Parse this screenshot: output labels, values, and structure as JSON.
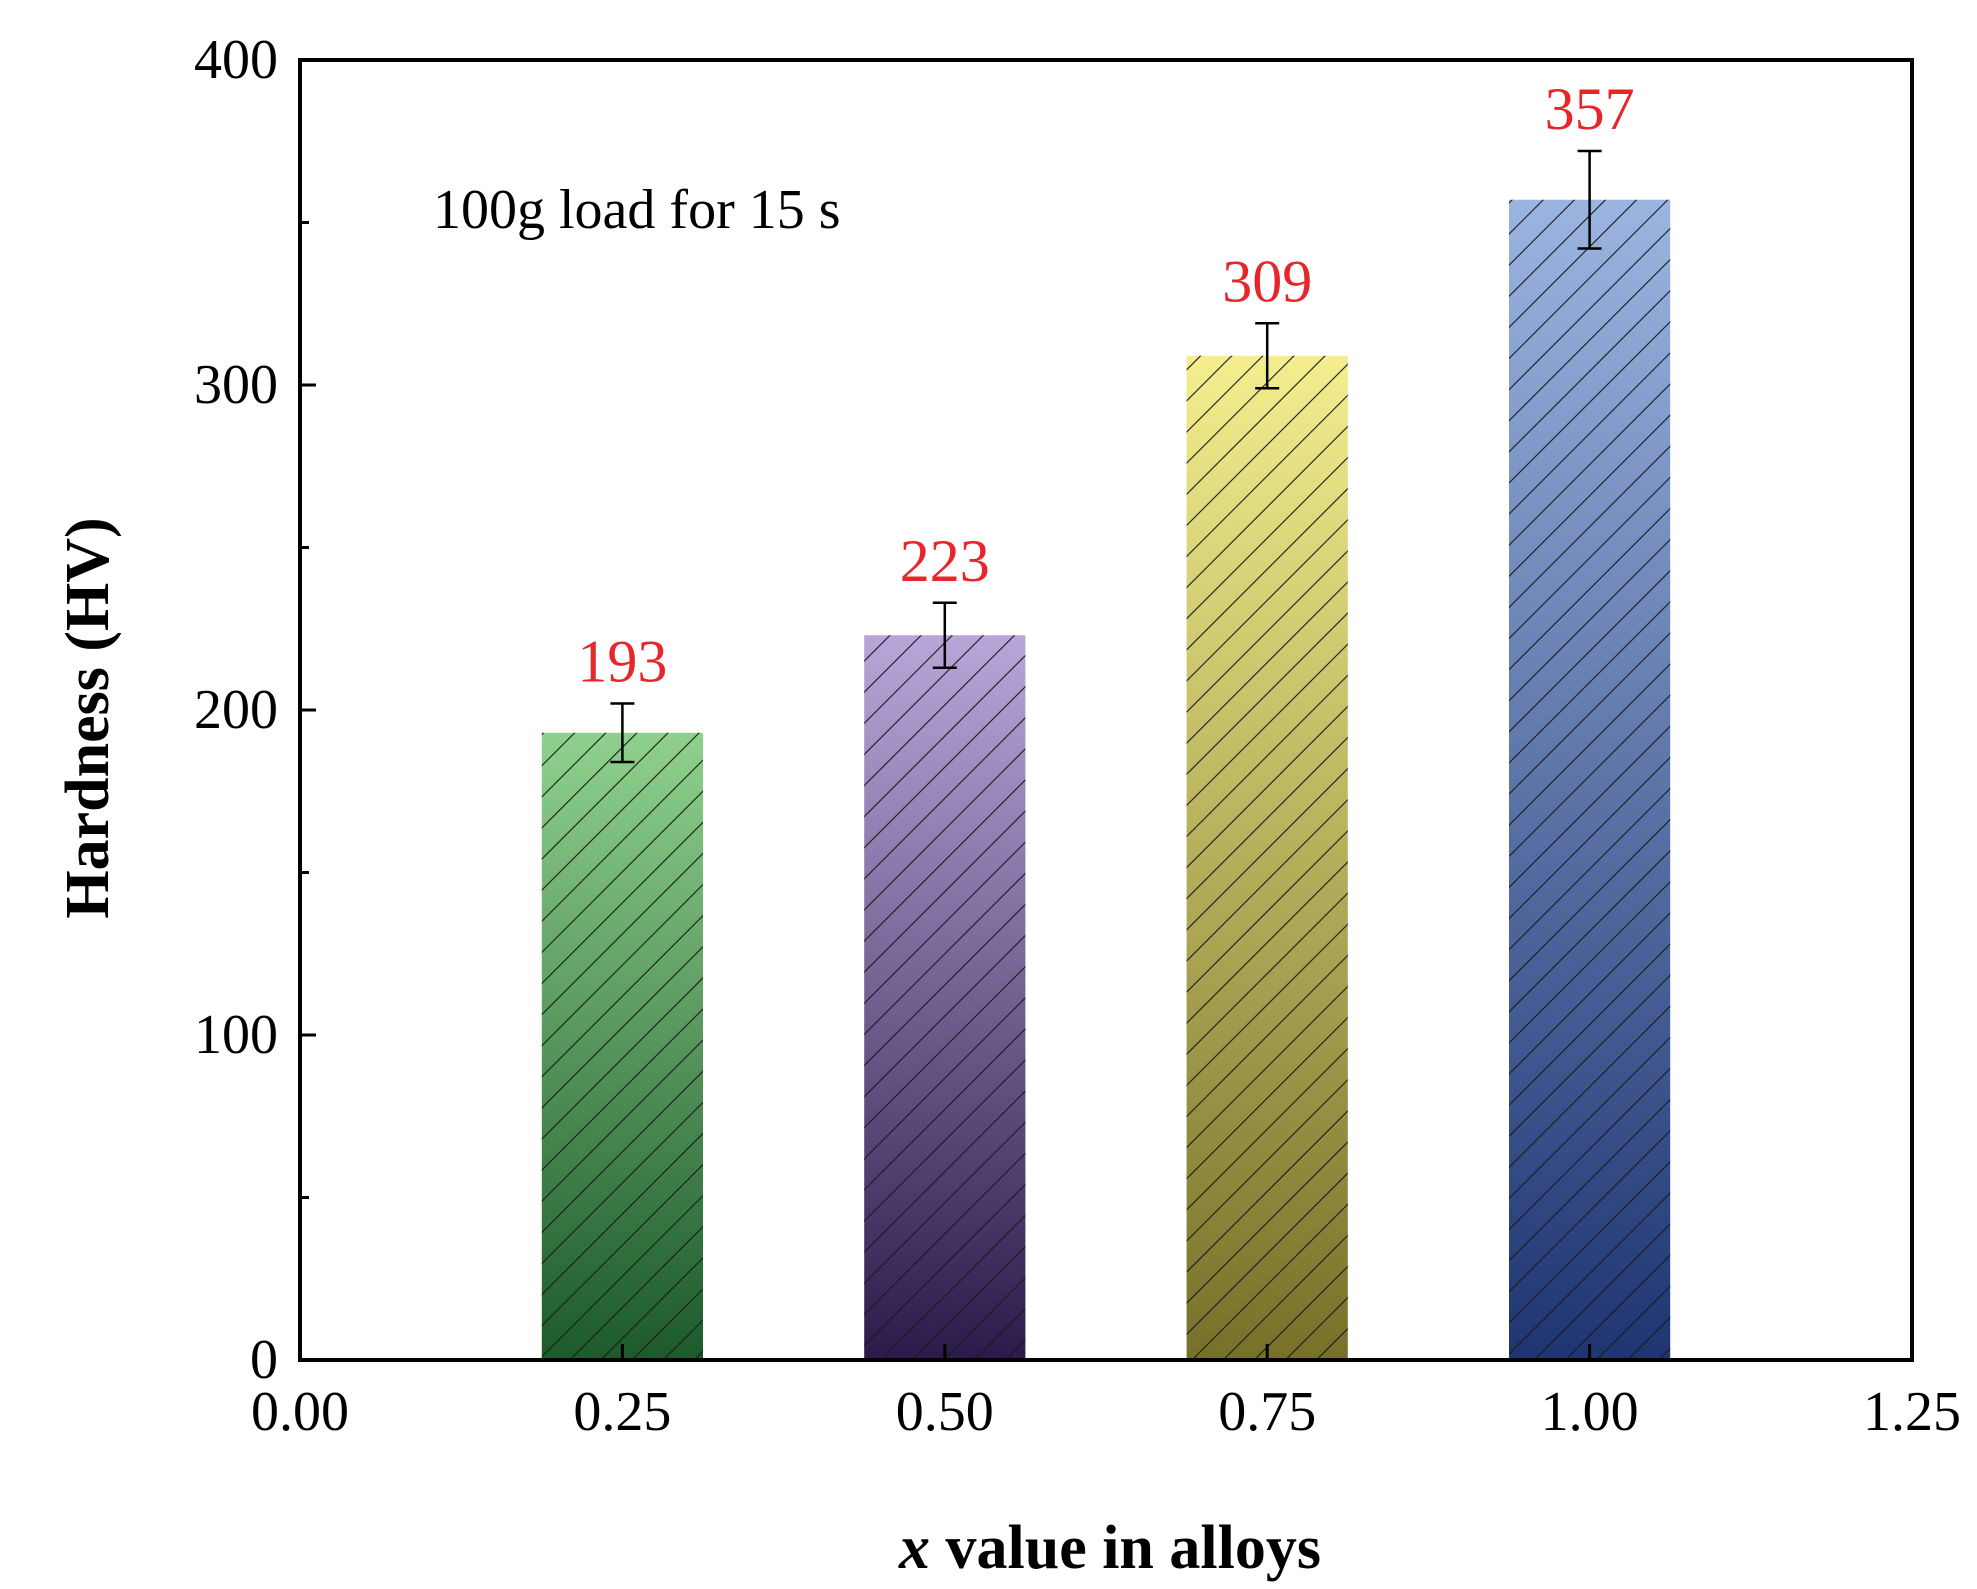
{
  "chart_data": {
    "type": "bar",
    "title": "",
    "xlabel_var": "x",
    "xlabel_rest": " value in alloys",
    "ylabel": "Hardness (HV)",
    "annotation": "100g load for 15 s",
    "xlim": [
      0.0,
      1.25
    ],
    "ylim": [
      0,
      400
    ],
    "x_ticks": [
      "0.00",
      "0.25",
      "0.50",
      "0.75",
      "1.00",
      "1.25"
    ],
    "x_tick_values": [
      0.0,
      0.25,
      0.5,
      0.75,
      1.0,
      1.25
    ],
    "y_ticks": [
      "0",
      "100",
      "200",
      "300",
      "400"
    ],
    "y_tick_values": [
      0,
      100,
      200,
      300,
      400
    ],
    "y_minor_ticks": [
      50,
      150,
      250,
      350
    ],
    "bar_width": 0.125,
    "bars": [
      {
        "x": 0.25,
        "value": 193,
        "label": "193",
        "err": 9,
        "color_top": "#8fd18c",
        "color_bottom": "#1c5a2b"
      },
      {
        "x": 0.5,
        "value": 223,
        "label": "223",
        "err": 10,
        "color_top": "#b9a6d9",
        "color_bottom": "#2b1a4a"
      },
      {
        "x": 0.75,
        "value": 309,
        "label": "309",
        "err": 10,
        "color_top": "#f3ee8e",
        "color_bottom": "#77702a"
      },
      {
        "x": 1.0,
        "value": 357,
        "label": "357",
        "err": 15,
        "color_top": "#9bb4e0",
        "color_bottom": "#1f3572"
      }
    ],
    "value_label_color": "#e8262a",
    "grid": false
  }
}
